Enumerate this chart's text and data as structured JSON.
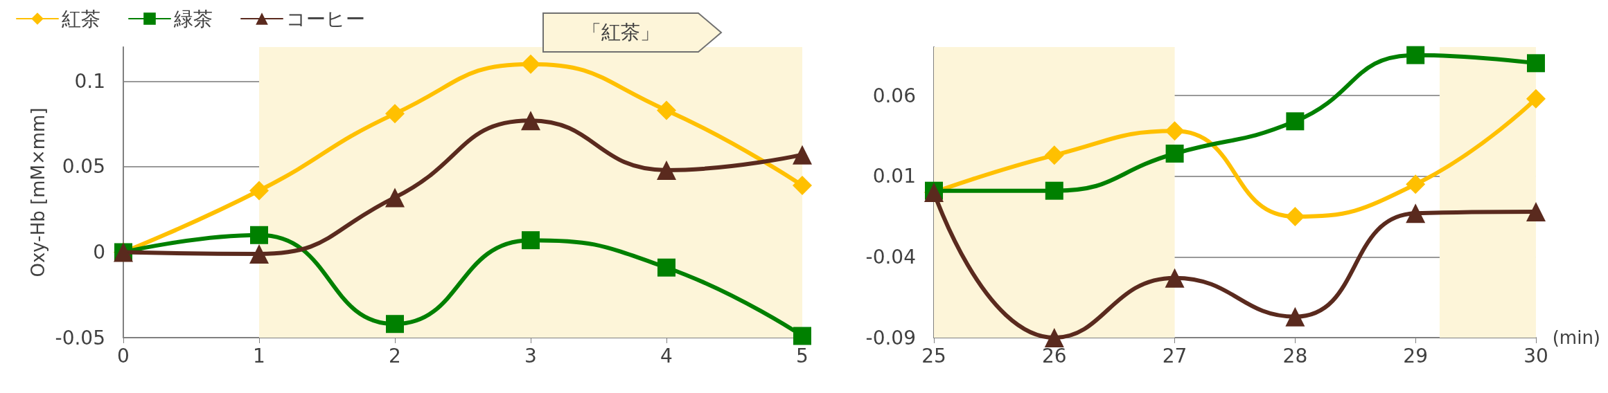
{
  "chart_data": [
    {
      "type": "line",
      "ylabel": "Oxy-Hb [mM×mm]",
      "x": [
        0,
        1,
        2,
        3,
        4,
        5
      ],
      "xlim": [
        0,
        5
      ],
      "xticks": [
        0,
        1,
        2,
        3,
        4,
        5
      ],
      "ylim": [
        -0.05,
        0.12
      ],
      "yticks": [
        -0.05,
        0,
        0.05,
        0.1
      ],
      "grid": "y",
      "legend": "top left",
      "annotations": [
        "「紅茶」"
      ],
      "bands": [
        {
          "axis": "x",
          "from": 1,
          "to": 5,
          "color": "#fdf5d9"
        }
      ],
      "series": [
        {
          "name": "紅茶",
          "color": "#ffc000",
          "marker": "diamond",
          "values": [
            0,
            0.036,
            0.081,
            0.11,
            0.083,
            0.039
          ]
        },
        {
          "name": "緑茶",
          "color": "#008000",
          "marker": "square",
          "values": [
            0,
            0.01,
            -0.042,
            0.007,
            -0.009,
            -0.049
          ]
        },
        {
          "name": "コーヒー",
          "color": "#5a2a1e",
          "marker": "triangle",
          "values": [
            0,
            -0.001,
            0.032,
            0.077,
            0.048,
            0.057
          ]
        }
      ]
    },
    {
      "type": "line",
      "xlabel": "(min)",
      "x": [
        25,
        26,
        27,
        28,
        29,
        30
      ],
      "xlim": [
        25,
        30
      ],
      "xticks": [
        25,
        26,
        27,
        28,
        29,
        30
      ],
      "ylim": [
        -0.09,
        0.09
      ],
      "yticks": [
        -0.09,
        -0.04,
        0.01,
        0.06
      ],
      "grid": "y",
      "bands": [
        {
          "axis": "x",
          "from": 25,
          "to": 27,
          "color": "#fdf5d9"
        },
        {
          "axis": "x",
          "from": 29.2,
          "to": 30,
          "color": "#fdf5d9"
        }
      ],
      "series": [
        {
          "color": "#ffc000",
          "marker": "diamond",
          "values": [
            0,
            0.023,
            0.038,
            -0.015,
            0.005,
            0.058
          ]
        },
        {
          "color": "#008000",
          "marker": "square",
          "values": [
            0.001,
            0.001,
            0.024,
            0.044,
            0.085,
            0.08
          ]
        },
        {
          "color": "#5a2a1e",
          "marker": "triangle",
          "values": [
            0,
            -0.09,
            -0.053,
            -0.077,
            -0.013,
            -0.012
          ]
        }
      ]
    }
  ]
}
